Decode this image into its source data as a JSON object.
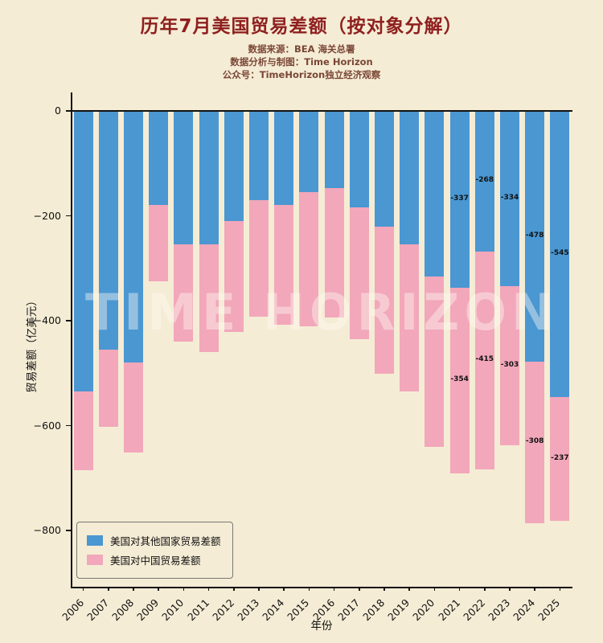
{
  "header": {
    "title": "历年7月美国贸易差额（按对象分解）",
    "subtitles": [
      "数据来源：BEA 海关总署",
      "数据分析与制图：Time Horizon",
      "公众号：TimeHorizon独立经济观察"
    ]
  },
  "chart_data": {
    "type": "bar",
    "stacked": true,
    "title": "历年7月美国贸易差额（按对象分解）",
    "xlabel": "年份",
    "ylabel": "贸易差额（亿美元）",
    "categories": [
      "2006",
      "2007",
      "2008",
      "2009",
      "2010",
      "2011",
      "2012",
      "2013",
      "2014",
      "2015",
      "2016",
      "2017",
      "2018",
      "2019",
      "2020",
      "2021",
      "2022",
      "2023",
      "2024",
      "2025"
    ],
    "series": [
      {
        "name": "美国对其他国家贸易差额",
        "color": "#4A97D2",
        "values": [
          -535,
          -455,
          -480,
          -180,
          -255,
          -255,
          -210,
          -170,
          -180,
          -155,
          -147,
          -184,
          -220,
          -255,
          -315,
          -337,
          -268,
          -334,
          -478,
          -545
        ],
        "labels": [
          "",
          "",
          "",
          "",
          "",
          "",
          "",
          "",
          "",
          "",
          "",
          "",
          "",
          "",
          "",
          "-337",
          "-268",
          "-334",
          "-478",
          "-545"
        ]
      },
      {
        "name": "美国对中国贸易差额",
        "color": "#F2A7BA",
        "values": [
          -150,
          -148,
          -172,
          -145,
          -185,
          -205,
          -212,
          -223,
          -228,
          -255,
          -247,
          -252,
          -281,
          -280,
          -325,
          -354,
          -415,
          -303,
          -308,
          -237
        ],
        "labels": [
          "",
          "",
          "",
          "",
          "",
          "",
          "",
          "",
          "",
          "",
          "",
          "",
          "",
          "",
          "",
          "-354",
          "-415",
          "-303",
          "-308",
          "-237"
        ]
      }
    ],
    "yticks": [
      0,
      -200,
      -400,
      -600,
      -800
    ],
    "ylim": [
      -900,
      40
    ],
    "grid": false,
    "legend_position": "lower left",
    "watermark": "TIME HORIZON"
  },
  "colors": {
    "background": "#F5ECD5",
    "title": "#8E1F1F",
    "subtitle": "#7A4636",
    "axis": "#111111",
    "blue_bar": "#4A97D2",
    "pink_bar": "#F2A7BA"
  }
}
